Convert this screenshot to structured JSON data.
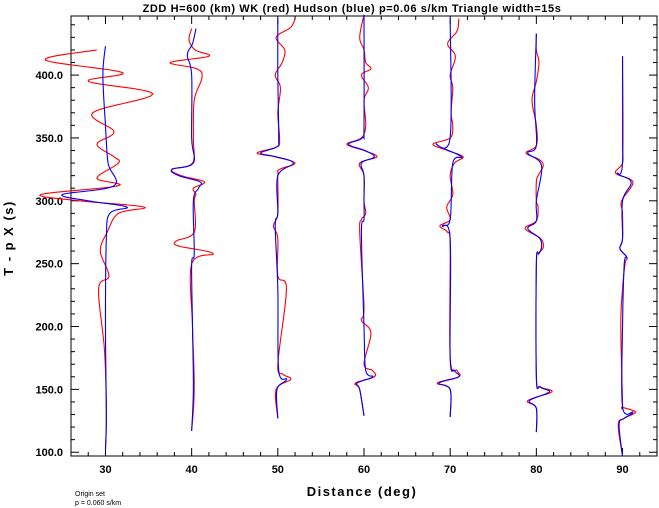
{
  "chart_data": {
    "type": "line",
    "title": "ZDD H=600 (km) WK (red) Hudson (blue) p=0.06 s/km Triangle width=15s",
    "xlabel": "Distance (deg)",
    "ylabel": "T - p X (s)",
    "xlim": [
      26,
      94
    ],
    "ylim": [
      97,
      447
    ],
    "x_ticks": [
      "30",
      "40",
      "50",
      "60",
      "70",
      "80",
      "90"
    ],
    "y_ticks": [
      "100.0",
      "150.0",
      "200.0",
      "250.0",
      "300.0",
      "350.0",
      "400.0"
    ],
    "grid": false,
    "series": [
      {
        "name": "WK",
        "color": "#ff0000"
      },
      {
        "name": "Hudson",
        "color": "#0000ff"
      }
    ],
    "traces": [
      {
        "distance": 30,
        "t_start": 102,
        "t_end": 423,
        "red": [
          [
            102,
            0
          ],
          [
            130,
            0.1
          ],
          [
            180,
            -0.1
          ],
          [
            230,
            -0.8
          ],
          [
            240,
            0.4
          ],
          [
            260,
            -0.6
          ],
          [
            275,
            0.2
          ],
          [
            290,
            1.5
          ],
          [
            295,
            4.5
          ],
          [
            300,
            -3
          ],
          [
            305,
            -7.5
          ],
          [
            312,
            1.5
          ],
          [
            318,
            -1
          ],
          [
            330,
            1.5
          ],
          [
            335,
            1
          ],
          [
            345,
            -1
          ],
          [
            355,
            1
          ],
          [
            370,
            -1.5
          ],
          [
            385,
            5.5
          ],
          [
            395,
            -2
          ],
          [
            402,
            2
          ],
          [
            412,
            -7
          ],
          [
            420,
            -1
          ]
        ],
        "blue": [
          [
            102,
            0
          ],
          [
            130,
            0.1
          ],
          [
            200,
            0
          ],
          [
            270,
            0.1
          ],
          [
            290,
            0.5
          ],
          [
            295,
            2.5
          ],
          [
            300,
            -2
          ],
          [
            305,
            -5
          ],
          [
            312,
            1
          ],
          [
            330,
            0.3
          ],
          [
            360,
            0
          ],
          [
            400,
            -0.3
          ],
          [
            423,
            0
          ]
        ]
      },
      {
        "distance": 40,
        "t_start": 117,
        "t_end": 437,
        "red": [
          [
            117,
            0
          ],
          [
            150,
            0.3
          ],
          [
            200,
            0.1
          ],
          [
            250,
            0
          ],
          [
            258,
            2.5
          ],
          [
            264,
            -1.5
          ],
          [
            268,
            -1.8
          ],
          [
            275,
            0.3
          ],
          [
            300,
            0.3
          ],
          [
            305,
            0.5
          ],
          [
            310,
            0.2
          ],
          [
            315,
            1.5
          ],
          [
            320,
            -1.2
          ],
          [
            325,
            -2.3
          ],
          [
            330,
            0.1
          ],
          [
            350,
            0.2
          ],
          [
            380,
            0.3
          ],
          [
            398,
            1.2
          ],
          [
            405,
            0.6
          ],
          [
            410,
            -2.5
          ],
          [
            415,
            2
          ],
          [
            420,
            0.4
          ],
          [
            428,
            -0.3
          ],
          [
            437,
            0
          ]
        ],
        "blue": [
          [
            117,
            0
          ],
          [
            150,
            0.2
          ],
          [
            200,
            0.1
          ],
          [
            250,
            0
          ],
          [
            258,
            0.3
          ],
          [
            300,
            0.2
          ],
          [
            310,
            0.8
          ],
          [
            315,
            1
          ],
          [
            320,
            -1.5
          ],
          [
            325,
            -2.3
          ],
          [
            330,
            0.2
          ],
          [
            350,
            0
          ],
          [
            400,
            0
          ],
          [
            416,
            -0.5
          ],
          [
            425,
            0.1
          ],
          [
            437,
            0.5
          ]
        ]
      },
      {
        "distance": 50,
        "t_start": 127,
        "t_end": 445,
        "red": [
          [
            127,
            0
          ],
          [
            150,
            -0.2
          ],
          [
            158,
            1.5
          ],
          [
            162,
            0.6
          ],
          [
            170,
            0
          ],
          [
            230,
            1
          ],
          [
            240,
            0
          ],
          [
            270,
            0
          ],
          [
            280,
            -0.5
          ],
          [
            290,
            0
          ],
          [
            320,
            0
          ],
          [
            325,
            0.2
          ],
          [
            330,
            2
          ],
          [
            335,
            -0.3
          ],
          [
            338,
            -2.4
          ],
          [
            343,
            -0.1
          ],
          [
            350,
            0.2
          ],
          [
            370,
            0
          ],
          [
            390,
            0.3
          ],
          [
            400,
            -0.3
          ],
          [
            410,
            0.5
          ],
          [
            420,
            0.8
          ],
          [
            430,
            -0.2
          ],
          [
            438,
            1.5
          ],
          [
            445,
            2
          ]
        ],
        "blue": [
          [
            127,
            0
          ],
          [
            150,
            -0.1
          ],
          [
            158,
            1
          ],
          [
            165,
            0.1
          ],
          [
            230,
            0
          ],
          [
            280,
            -0.3
          ],
          [
            290,
            0
          ],
          [
            320,
            0
          ],
          [
            330,
            1.8
          ],
          [
            335,
            -0.2
          ],
          [
            338,
            -2
          ],
          [
            343,
            -0.1
          ],
          [
            350,
            0.1
          ],
          [
            400,
            0
          ],
          [
            445,
            0
          ]
        ]
      },
      {
        "distance": 60,
        "t_start": 129,
        "t_end": 448,
        "red": [
          [
            129,
            0
          ],
          [
            150,
            -0.5
          ],
          [
            155,
            -1
          ],
          [
            160,
            1.2
          ],
          [
            165,
            1
          ],
          [
            170,
            0
          ],
          [
            195,
            0.8
          ],
          [
            205,
            -0.3
          ],
          [
            215,
            0
          ],
          [
            275,
            -0.5
          ],
          [
            285,
            -0.3
          ],
          [
            290,
            0.2
          ],
          [
            300,
            0
          ],
          [
            320,
            0
          ],
          [
            330,
            -0.5
          ],
          [
            335,
            1.5
          ],
          [
            340,
            0
          ],
          [
            345,
            -2
          ],
          [
            350,
            -0.3
          ],
          [
            360,
            0.2
          ],
          [
            380,
            0
          ],
          [
            390,
            0.5
          ],
          [
            400,
            -0.3
          ],
          [
            405,
            0.8
          ],
          [
            410,
            0.2
          ],
          [
            420,
            0
          ],
          [
            430,
            -0.5
          ],
          [
            448,
            0
          ]
        ],
        "blue": [
          [
            129,
            0
          ],
          [
            150,
            -0.5
          ],
          [
            155,
            -0.8
          ],
          [
            160,
            1
          ],
          [
            165,
            0.2
          ],
          [
            200,
            0
          ],
          [
            275,
            -0.3
          ],
          [
            285,
            0
          ],
          [
            300,
            0
          ],
          [
            320,
            0
          ],
          [
            330,
            -0.3
          ],
          [
            335,
            1.2
          ],
          [
            340,
            0.1
          ],
          [
            345,
            -1.8
          ],
          [
            350,
            -0.2
          ],
          [
            360,
            0
          ],
          [
            448,
            0
          ]
        ]
      },
      {
        "distance": 70,
        "t_start": 128,
        "t_end": 445,
        "red": [
          [
            128,
            0
          ],
          [
            150,
            0
          ],
          [
            155,
            -1.5
          ],
          [
            160,
            1
          ],
          [
            165,
            0.8
          ],
          [
            175,
            0
          ],
          [
            265,
            0
          ],
          [
            275,
            -0.3
          ],
          [
            280,
            -1.2
          ],
          [
            285,
            0
          ],
          [
            295,
            -0.4
          ],
          [
            305,
            0.3
          ],
          [
            320,
            0
          ],
          [
            330,
            0.5
          ],
          [
            335,
            1.5
          ],
          [
            340,
            -0.3
          ],
          [
            345,
            -2
          ],
          [
            350,
            0
          ],
          [
            360,
            0.3
          ],
          [
            370,
            0.1
          ],
          [
            390,
            0.3
          ],
          [
            400,
            0
          ],
          [
            415,
            0.6
          ],
          [
            425,
            -0.3
          ],
          [
            435,
            0.8
          ],
          [
            445,
            1
          ]
        ],
        "blue": [
          [
            128,
            0
          ],
          [
            150,
            0
          ],
          [
            155,
            -1.3
          ],
          [
            160,
            1
          ],
          [
            165,
            0.5
          ],
          [
            175,
            0
          ],
          [
            270,
            0
          ],
          [
            280,
            -0.9
          ],
          [
            285,
            0
          ],
          [
            330,
            0.3
          ],
          [
            335,
            1.3
          ],
          [
            345,
            -1.6
          ],
          [
            350,
            0
          ],
          [
            445,
            0
          ]
        ]
      },
      {
        "distance": 80,
        "t_start": 116,
        "t_end": 433,
        "red": [
          [
            116,
            0
          ],
          [
            135,
            0
          ],
          [
            141,
            -1
          ],
          [
            148,
            1.8
          ],
          [
            152,
            0.5
          ],
          [
            160,
            0
          ],
          [
            250,
            0
          ],
          [
            258,
            0.3
          ],
          [
            263,
            0.8
          ],
          [
            270,
            0.5
          ],
          [
            278,
            -1.3
          ],
          [
            284,
            0
          ],
          [
            295,
            0.2
          ],
          [
            300,
            0
          ],
          [
            315,
            0
          ],
          [
            320,
            0.2
          ],
          [
            328,
            0.8
          ],
          [
            333,
            0.3
          ],
          [
            338,
            -1.2
          ],
          [
            344,
            0
          ],
          [
            360,
            0
          ],
          [
            380,
            -0.5
          ],
          [
            395,
            0
          ],
          [
            410,
            0.3
          ],
          [
            420,
            0
          ],
          [
            433,
            0
          ]
        ],
        "blue": [
          [
            116,
            0
          ],
          [
            135,
            0
          ],
          [
            141,
            -0.8
          ],
          [
            148,
            1.5
          ],
          [
            152,
            0.4
          ],
          [
            160,
            0
          ],
          [
            250,
            0
          ],
          [
            258,
            0.3
          ],
          [
            263,
            0.6
          ],
          [
            270,
            0.4
          ],
          [
            278,
            -1
          ],
          [
            284,
            0
          ],
          [
            300,
            0
          ],
          [
            328,
            0.6
          ],
          [
            338,
            -1
          ],
          [
            344,
            0
          ],
          [
            380,
            -0.2
          ],
          [
            433,
            0
          ]
        ]
      },
      {
        "distance": 90,
        "t_start": 97,
        "t_end": 415,
        "red": [
          [
            97,
            0
          ],
          [
            122,
            -0.5
          ],
          [
            127,
            0.2
          ],
          [
            132,
            1.5
          ],
          [
            136,
            0
          ],
          [
            140,
            0
          ],
          [
            200,
            -0.2
          ],
          [
            230,
            0
          ],
          [
            250,
            0.3
          ],
          [
            255,
            0.5
          ],
          [
            262,
            -0.3
          ],
          [
            270,
            0
          ],
          [
            290,
            0
          ],
          [
            300,
            -0.1
          ],
          [
            315,
            1.2
          ],
          [
            322,
            -0.8
          ],
          [
            330,
            0
          ],
          [
            345,
            0
          ],
          [
            375,
            0
          ],
          [
            415,
            0
          ]
        ],
        "blue": [
          [
            97,
            0
          ],
          [
            122,
            -0.4
          ],
          [
            127,
            0.2
          ],
          [
            132,
            1.2
          ],
          [
            136,
            0
          ],
          [
            200,
            0
          ],
          [
            250,
            0.2
          ],
          [
            255,
            0.5
          ],
          [
            262,
            -0.3
          ],
          [
            270,
            0
          ],
          [
            300,
            0
          ],
          [
            315,
            1
          ],
          [
            322,
            -0.6
          ],
          [
            330,
            0
          ],
          [
            415,
            0
          ]
        ]
      }
    ]
  },
  "footnote": {
    "line1": "Origin set",
    "line2": "p = 0.060 s/km"
  }
}
